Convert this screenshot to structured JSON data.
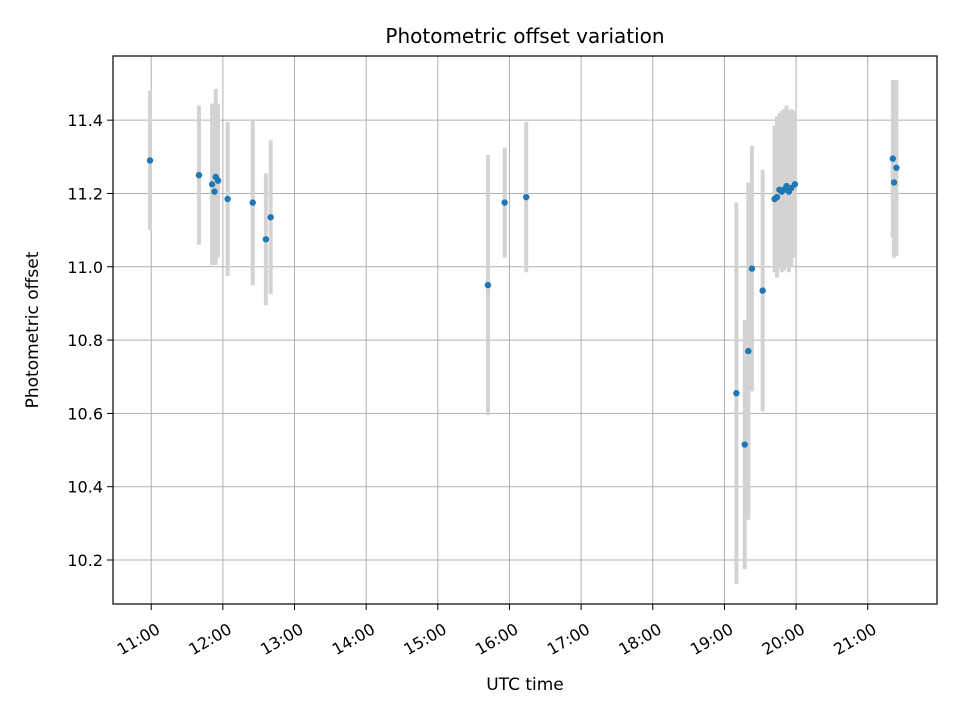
{
  "chart_data": {
    "type": "scatter",
    "title": "Photometric offset variation",
    "xlabel": "UTC time",
    "ylabel": "Photometric offset",
    "x_unit": "UTC time of day (hours)",
    "xlim": [
      "10:28",
      "21:58"
    ],
    "ylim": [
      10.08,
      11.575
    ],
    "grid": true,
    "x_ticks": [
      "11:00",
      "12:00",
      "13:00",
      "14:00",
      "15:00",
      "16:00",
      "17:00",
      "18:00",
      "19:00",
      "20:00",
      "21:00"
    ],
    "y_ticks": [
      "10.2",
      "10.4",
      "10.6",
      "10.8",
      "11.0",
      "11.2",
      "11.4"
    ],
    "colors": {
      "marker": "#1f77b4",
      "errorbar": "#d3d3d3",
      "grid": "#b0b0b0"
    },
    "series": [
      {
        "points": [
          {
            "x": "10:59",
            "y": 11.29,
            "yerr": 0.19
          },
          {
            "x": "11:40",
            "y": 11.25,
            "yerr": 0.19
          },
          {
            "x": "11:51",
            "y": 11.225,
            "yerr": 0.22
          },
          {
            "x": "11:53",
            "y": 11.205,
            "yerr": 0.19
          },
          {
            "x": "11:54",
            "y": 11.245,
            "yerr": 0.24
          },
          {
            "x": "11:56",
            "y": 11.235,
            "yerr": 0.21
          },
          {
            "x": "12:04",
            "y": 11.185,
            "yerr": 0.21
          },
          {
            "x": "12:25",
            "y": 11.175,
            "yerr": 0.225
          },
          {
            "x": "12:36",
            "y": 11.075,
            "yerr": 0.18
          },
          {
            "x": "12:40",
            "y": 11.135,
            "yerr": 0.21
          },
          {
            "x": "15:42",
            "y": 10.95,
            "yerr": 0.355
          },
          {
            "x": "15:56",
            "y": 11.175,
            "yerr": 0.15
          },
          {
            "x": "16:14",
            "y": 11.19,
            "yerr": 0.205
          },
          {
            "x": "19:10",
            "y": 10.655,
            "yerr": 0.52
          },
          {
            "x": "19:17",
            "y": 10.515,
            "yerr": 0.34
          },
          {
            "x": "19:20",
            "y": 10.77,
            "yerr": 0.46
          },
          {
            "x": "19:23",
            "y": 10.995,
            "yerr": 0.335
          },
          {
            "x": "19:32",
            "y": 10.935,
            "yerr": 0.33
          },
          {
            "x": "19:42",
            "y": 11.185,
            "yerr": 0.2
          },
          {
            "x": "19:44",
            "y": 11.19,
            "yerr": 0.22
          },
          {
            "x": "19:46",
            "y": 11.21,
            "yerr": 0.21
          },
          {
            "x": "19:48",
            "y": 11.205,
            "yerr": 0.22
          },
          {
            "x": "19:50",
            "y": 11.21,
            "yerr": 0.22
          },
          {
            "x": "19:52",
            "y": 11.22,
            "yerr": 0.22
          },
          {
            "x": "19:54",
            "y": 11.205,
            "yerr": 0.22
          },
          {
            "x": "19:56",
            "y": 11.215,
            "yerr": 0.215
          },
          {
            "x": "19:59",
            "y": 11.225,
            "yerr": 0.2
          },
          {
            "x": "21:21",
            "y": 11.295,
            "yerr": 0.215
          },
          {
            "x": "21:22",
            "y": 11.23,
            "yerr": 0.205
          },
          {
            "x": "21:24",
            "y": 11.27,
            "yerr": 0.24
          }
        ]
      }
    ]
  }
}
